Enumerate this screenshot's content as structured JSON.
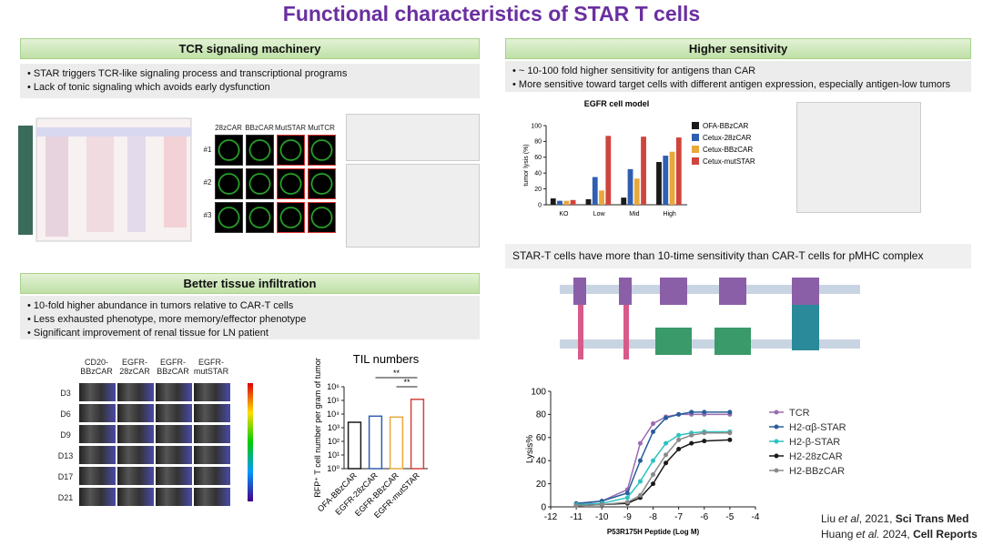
{
  "title": "Functional characteristics of STAR T cells",
  "tcr": {
    "header": "TCR signaling machinery",
    "bullets": [
      "STAR triggers TCR-like signaling process and transcriptional programs",
      "Lack of tonic signaling which avoids early dysfunction"
    ],
    "micro_columns": [
      "28zCAR",
      "BBzCAR",
      "MutSTAR",
      "MutTCR"
    ],
    "micro_rows": [
      "#1",
      "#2",
      "#3"
    ]
  },
  "sensitivity": {
    "header": "Higher sensitivity",
    "bullets": [
      "~ 10-100 fold higher sensitivity for antigens than CAR",
      "More sensitive toward target cells with different antigen expression, especially antigen-low tumors"
    ],
    "chart": {
      "type": "bar",
      "title": "EGFR  cell model",
      "y_label": "tumor lysis (%)",
      "categories": [
        "KO",
        "Low",
        "Mid",
        "High"
      ],
      "series": [
        {
          "name": "OFA-BBzCAR",
          "color": "#1a1a1a",
          "values": [
            8,
            7,
            9,
            54
          ]
        },
        {
          "name": "Cetux-28zCAR",
          "color": "#2f5fb3",
          "values": [
            5,
            35,
            45,
            62
          ]
        },
        {
          "name": "Cetux-BBzCAR",
          "color": "#e8a83a",
          "values": [
            5,
            18,
            33,
            67
          ]
        },
        {
          "name": "Cetux-mutSTAR",
          "color": "#d0443c",
          "values": [
            6,
            87,
            86,
            85
          ]
        }
      ],
      "ylim": [
        0,
        100
      ],
      "yticks": [
        0,
        20,
        40,
        60,
        80,
        100
      ]
    }
  },
  "tissue": {
    "header": "Better tissue infiltration",
    "bullets": [
      "10-fold higher abundance in tumors relative to CAR-T cells",
      "Less exhausted phenotype, more memory/effector phenotype",
      "Significant improvement of renal tissue for LN patient"
    ],
    "imaging_columns": [
      "CD20-BBzCAR",
      "EGFR-28zCAR",
      "EGFR-BBzCAR",
      "EGFR-mutSTAR"
    ],
    "imaging_rows": [
      "D3",
      "D6",
      "D9",
      "D13",
      "D17",
      "D21"
    ],
    "chart": {
      "type": "bar",
      "title": "TIL numbers",
      "y_label": "RFP⁺ T cell number per gram of tumor",
      "log_scale": true,
      "categories": [
        "OFA-BBzCAR",
        "EGFR-28zCAR",
        "EGFR-BBzCAR",
        "EGFR-mutSTAR"
      ],
      "values": [
        2500,
        7000,
        6000,
        120000
      ],
      "colors": [
        "#1a1a1a",
        "#2f5fb3",
        "#e8a83a",
        "#d0443c"
      ],
      "ylim": [
        1,
        1000000
      ],
      "yticks": [
        {
          "value": 1,
          "label": "10⁰"
        },
        {
          "value": 10,
          "label": "10¹"
        },
        {
          "value": 100,
          "label": "10²"
        },
        {
          "value": 1000,
          "label": "10³"
        },
        {
          "value": 10000,
          "label": "10⁴"
        },
        {
          "value": 100000,
          "label": "10⁵"
        },
        {
          "value": 1000000,
          "label": "10⁶"
        }
      ],
      "annotations": [
        "**",
        "**"
      ]
    }
  },
  "pmhc": {
    "header": "STAR-T cells have more than 10-time sensitivity than CAR-T cells for pMHC complex",
    "chart": {
      "type": "line",
      "x_label": "P53R175H Peptide (Log M)",
      "y_label": "Lysis%",
      "x": [
        -11,
        -10,
        -9,
        -8.5,
        -8,
        -7.5,
        -7,
        -6.5,
        -6,
        -5
      ],
      "series": [
        {
          "name": "TCR",
          "color": "#9b6bb0",
          "values": [
            2,
            5,
            15,
            55,
            72,
            78,
            80,
            80,
            80,
            80
          ]
        },
        {
          "name": "H2-αβ-STAR",
          "color": "#2a5d9b",
          "values": [
            3,
            5,
            12,
            40,
            65,
            77,
            80,
            82,
            82,
            82
          ]
        },
        {
          "name": "H2-β-STAR",
          "color": "#2cc2c0",
          "values": [
            2,
            3,
            8,
            22,
            40,
            55,
            62,
            64,
            65,
            65
          ]
        },
        {
          "name": "H2-28zCAR",
          "color": "#1a1a1a",
          "values": [
            1,
            2,
            3,
            8,
            20,
            38,
            50,
            55,
            57,
            58
          ]
        },
        {
          "name": "H2-BBzCAR",
          "color": "#8a8a8a",
          "values": [
            1,
            2,
            4,
            10,
            28,
            45,
            58,
            62,
            64,
            64
          ]
        }
      ],
      "xlim": [
        -12,
        -4
      ],
      "xticks": [
        -12,
        -11,
        -10,
        -9,
        -8,
        -7,
        -6,
        -5,
        -4
      ],
      "ylim": [
        0,
        100
      ],
      "yticks": [
        0,
        20,
        40,
        60,
        80,
        100
      ]
    }
  },
  "citations": [
    {
      "author": "Liu",
      "etal": "et al",
      "year": ", 2021, ",
      "journal": "Sci Trans Med"
    },
    {
      "author": "Huang",
      "etal": "et al.",
      "year": " 2024, ",
      "journal": "Cell Reports"
    }
  ]
}
